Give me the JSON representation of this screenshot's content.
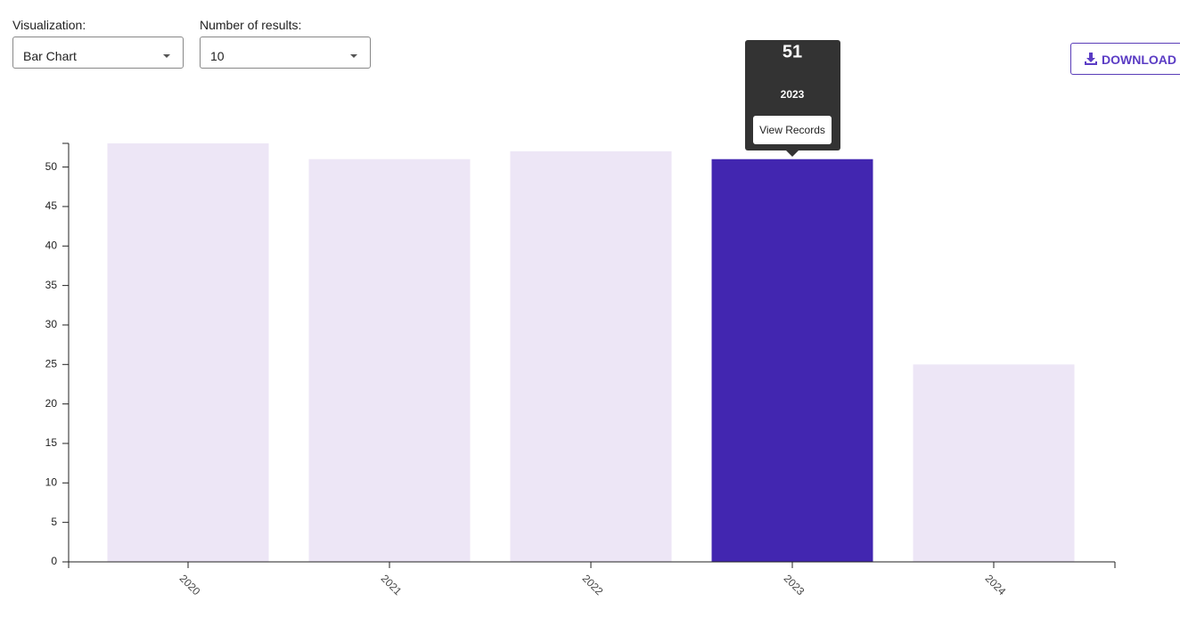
{
  "controls": {
    "visualization_label": "Visualization:",
    "visualization_value": "Bar Chart",
    "results_label": "Number of results:",
    "results_value": "10",
    "download": "DOWNLOAD"
  },
  "tooltip": {
    "action": "View Records"
  },
  "chart_data": {
    "type": "bar",
    "categories": [
      "2020",
      "2021",
      "2022",
      "2023",
      "2024"
    ],
    "values": [
      53,
      51,
      52,
      51,
      25
    ],
    "colors": [
      "#ede6f6",
      "#ede6f6",
      "#ede6f6",
      "#4226b0",
      "#ede6f6"
    ],
    "ylim": [
      0,
      53
    ],
    "yticks": [
      0,
      5,
      10,
      15,
      20,
      25,
      30,
      35,
      40,
      45,
      50
    ],
    "grid": false
  }
}
